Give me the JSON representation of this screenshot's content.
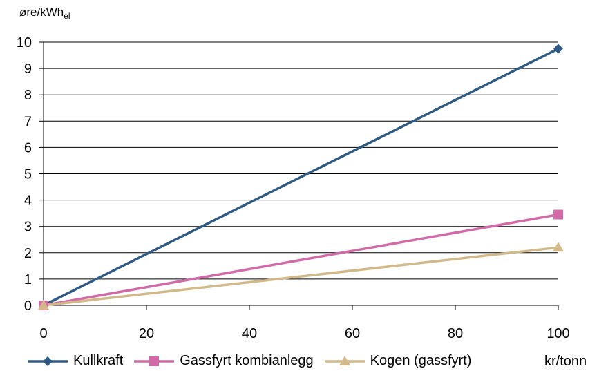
{
  "chart_data": {
    "type": "line",
    "ylabel": "øre/kWh",
    "ylabel_sub": "el",
    "xlabel": "kr/tonn",
    "x": [
      0,
      100
    ],
    "xticks": [
      0,
      20,
      40,
      60,
      80,
      100
    ],
    "yticks": [
      0,
      1,
      2,
      3,
      4,
      5,
      6,
      7,
      8,
      9,
      10
    ],
    "xlim": [
      0,
      100
    ],
    "ylim": [
      0,
      10
    ],
    "grid": "horizontal",
    "legend_position": "bottom",
    "series": [
      {
        "name": "Kullkraft",
        "values": [
          0,
          9.75
        ],
        "color": "#2e5a84",
        "marker": "diamond"
      },
      {
        "name": "Gassfyrt kombianlegg",
        "values": [
          0,
          3.45
        ],
        "color": "#d26aa8",
        "marker": "square"
      },
      {
        "name": "Kogen (gassfyrt)",
        "values": [
          0,
          2.2
        ],
        "color": "#d3b98a",
        "marker": "triangle"
      }
    ]
  }
}
